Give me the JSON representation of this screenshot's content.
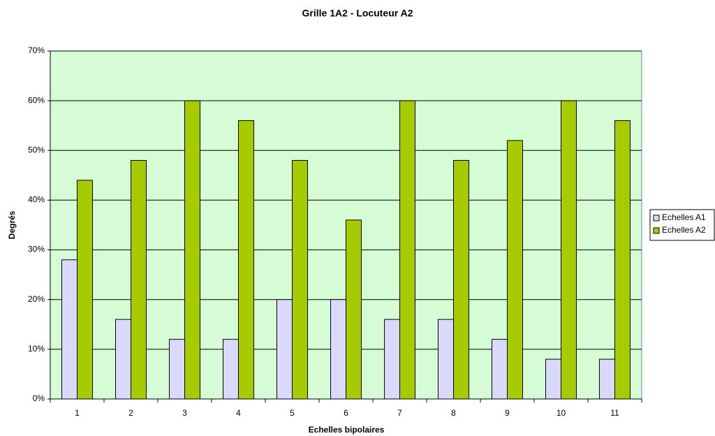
{
  "chart_data": {
    "type": "bar",
    "title": "Grille 1A2 - Locuteur A2",
    "x_label": "Echelles bipolaires",
    "y_label": "Degrés",
    "categories": [
      "1",
      "2",
      "3",
      "4",
      "5",
      "6",
      "7",
      "8",
      "9",
      "10",
      "11"
    ],
    "series": [
      {
        "name": "Echelles A1",
        "color": "#d9d9fb",
        "values": [
          28,
          16,
          12,
          12,
          20,
          20,
          16,
          16,
          12,
          8,
          8
        ]
      },
      {
        "name": "Echelles A2",
        "color": "#a6cc00",
        "values": [
          44,
          48,
          60,
          56,
          48,
          36,
          60,
          48,
          52,
          60,
          56
        ]
      }
    ],
    "ylim": [
      0,
      70
    ],
    "yticks": [
      {
        "value": 0,
        "label": "0%"
      },
      {
        "value": 10,
        "label": "10%"
      },
      {
        "value": 20,
        "label": "20%"
      },
      {
        "value": 30,
        "label": "30%"
      },
      {
        "value": 40,
        "label": "40%"
      },
      {
        "value": 50,
        "label": "50%"
      },
      {
        "value": 60,
        "label": "60%"
      },
      {
        "value": 70,
        "label": "70%"
      }
    ],
    "grid": true,
    "plot_background": "#d6fcd6",
    "legend": "right"
  }
}
